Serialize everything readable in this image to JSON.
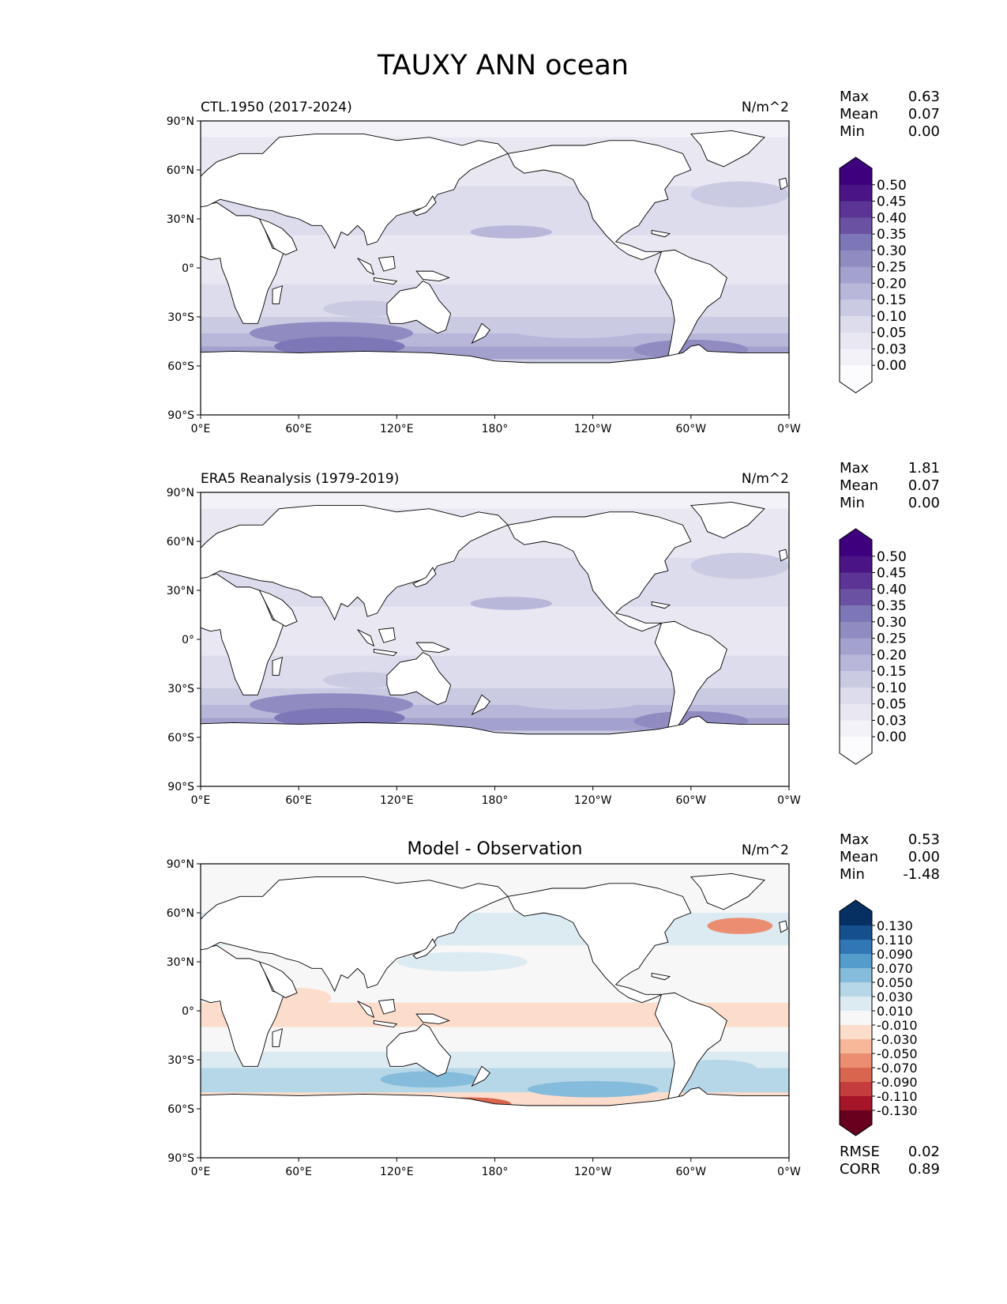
{
  "figure": {
    "title": "TAUXY ANN ocean"
  },
  "axes": {
    "lat_ticks": [
      "90°N",
      "60°N",
      "30°N",
      "0°",
      "30°S",
      "60°S",
      "90°S"
    ],
    "lon_ticks": [
      "0°E",
      "60°E",
      "120°E",
      "180°",
      "120°W",
      "60°W",
      "0°W"
    ]
  },
  "colors": {
    "seq": [
      "#fcfbfd",
      "#f3f2f8",
      "#e8e7f2",
      "#dcdcec",
      "#cacbe3",
      "#b8b7da",
      "#a3a1cd",
      "#908bc1",
      "#7e77b7",
      "#6b51a1",
      "#5b3495",
      "#4a1486",
      "#3f007d"
    ],
    "div": [
      "#67001f",
      "#a51429",
      "#c43c3c",
      "#d9654e",
      "#eb8d71",
      "#f6b898",
      "#fcddcb",
      "#f7f7f7",
      "#dcebf2",
      "#b6d7e8",
      "#85bcdb",
      "#529dcb",
      "#2f78b5",
      "#15508d",
      "#053061"
    ],
    "land": "#ffffff",
    "coast": "#000000"
  },
  "chart_data": [
    {
      "type": "heatmap",
      "left_title": "CTL.1950 (2017-2024)",
      "units": "N/m^2",
      "stats": [
        {
          "label": "Max",
          "value": "0.63"
        },
        {
          "label": "Mean",
          "value": "0.07"
        },
        {
          "label": "Min",
          "value": "0.00"
        }
      ],
      "colorbar": {
        "levels": [
          "0.50",
          "0.45",
          "0.40",
          "0.35",
          "0.30",
          "0.25",
          "0.20",
          "0.15",
          "0.10",
          "0.05",
          "0.03",
          "0.00"
        ],
        "scheme": "seq"
      },
      "xlim": [
        0,
        360
      ],
      "ylim": [
        -90,
        90
      ]
    },
    {
      "type": "heatmap",
      "left_title": "ERA5 Reanalysis (1979-2019)",
      "units": "N/m^2",
      "stats": [
        {
          "label": "Max",
          "value": "1.81"
        },
        {
          "label": "Mean",
          "value": "0.07"
        },
        {
          "label": "Min",
          "value": "0.00"
        }
      ],
      "colorbar": {
        "levels": [
          "0.50",
          "0.45",
          "0.40",
          "0.35",
          "0.30",
          "0.25",
          "0.20",
          "0.15",
          "0.10",
          "0.05",
          "0.03",
          "0.00"
        ],
        "scheme": "seq"
      },
      "xlim": [
        0,
        360
      ],
      "ylim": [
        -90,
        90
      ]
    },
    {
      "type": "heatmap",
      "center_title": "Model - Observation",
      "units": "N/m^2",
      "stats": [
        {
          "label": "Max",
          "value": "0.53"
        },
        {
          "label": "Mean",
          "value": "0.00"
        },
        {
          "label": "Min",
          "value": "-1.48"
        }
      ],
      "colorbar": {
        "levels": [
          "0.130",
          "0.110",
          "0.090",
          "0.070",
          "0.050",
          "0.030",
          "0.010",
          "-0.010",
          "-0.030",
          "-0.050",
          "-0.070",
          "-0.090",
          "-0.110",
          "-0.130"
        ],
        "scheme": "div"
      },
      "metrics": [
        {
          "label": "RMSE",
          "value": "0.02"
        },
        {
          "label": "CORR",
          "value": "0.89"
        }
      ],
      "xlim": [
        0,
        360
      ],
      "ylim": [
        -90,
        90
      ]
    }
  ]
}
